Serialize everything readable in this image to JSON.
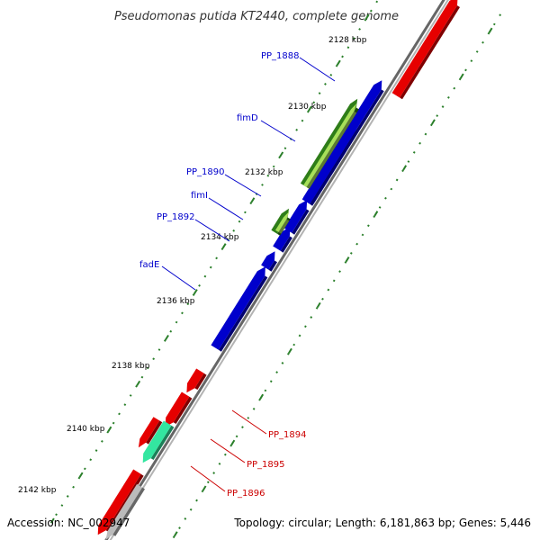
{
  "title": "Pseudomonas putida KT2440, complete genome",
  "colors": {
    "backbone_dark": "#666666",
    "backbone_light": "#b3b3b3",
    "cds_forward": "#0000cc",
    "cds_reverse": "#e60000",
    "fim_dark": "#2e7d18",
    "fim_light": "#a8e05a",
    "pp1895": "#33e6a0",
    "pseudo": "#bbbbbb",
    "tick": "#2a7f2a",
    "label_forward": "#0000cc",
    "label_reverse": "#cc0000"
  },
  "ticks": [
    {
      "label": "2128 kbp"
    },
    {
      "label": "2130 kbp"
    },
    {
      "label": "2132 kbp"
    },
    {
      "label": "2134 kbp"
    },
    {
      "label": "2136 kbp"
    },
    {
      "label": "2138 kbp"
    },
    {
      "label": "2140 kbp"
    },
    {
      "label": "2142 kbp"
    }
  ],
  "gene_labels": [
    {
      "name": "PP_1888",
      "strand": "forward"
    },
    {
      "name": "fimD",
      "strand": "forward"
    },
    {
      "name": "PP_1890",
      "strand": "forward"
    },
    {
      "name": "fimI",
      "strand": "forward"
    },
    {
      "name": "PP_1892",
      "strand": "forward"
    },
    {
      "name": "fadE",
      "strand": "forward"
    },
    {
      "name": "PP_1894",
      "strand": "reverse"
    },
    {
      "name": "PP_1895",
      "strand": "reverse"
    },
    {
      "name": "PP_1896",
      "strand": "reverse"
    }
  ],
  "footer": {
    "accession": "Accession: NC_002947",
    "summary": "Topology: circular; Length: 6,181,863 bp; Genes: 5,446"
  }
}
